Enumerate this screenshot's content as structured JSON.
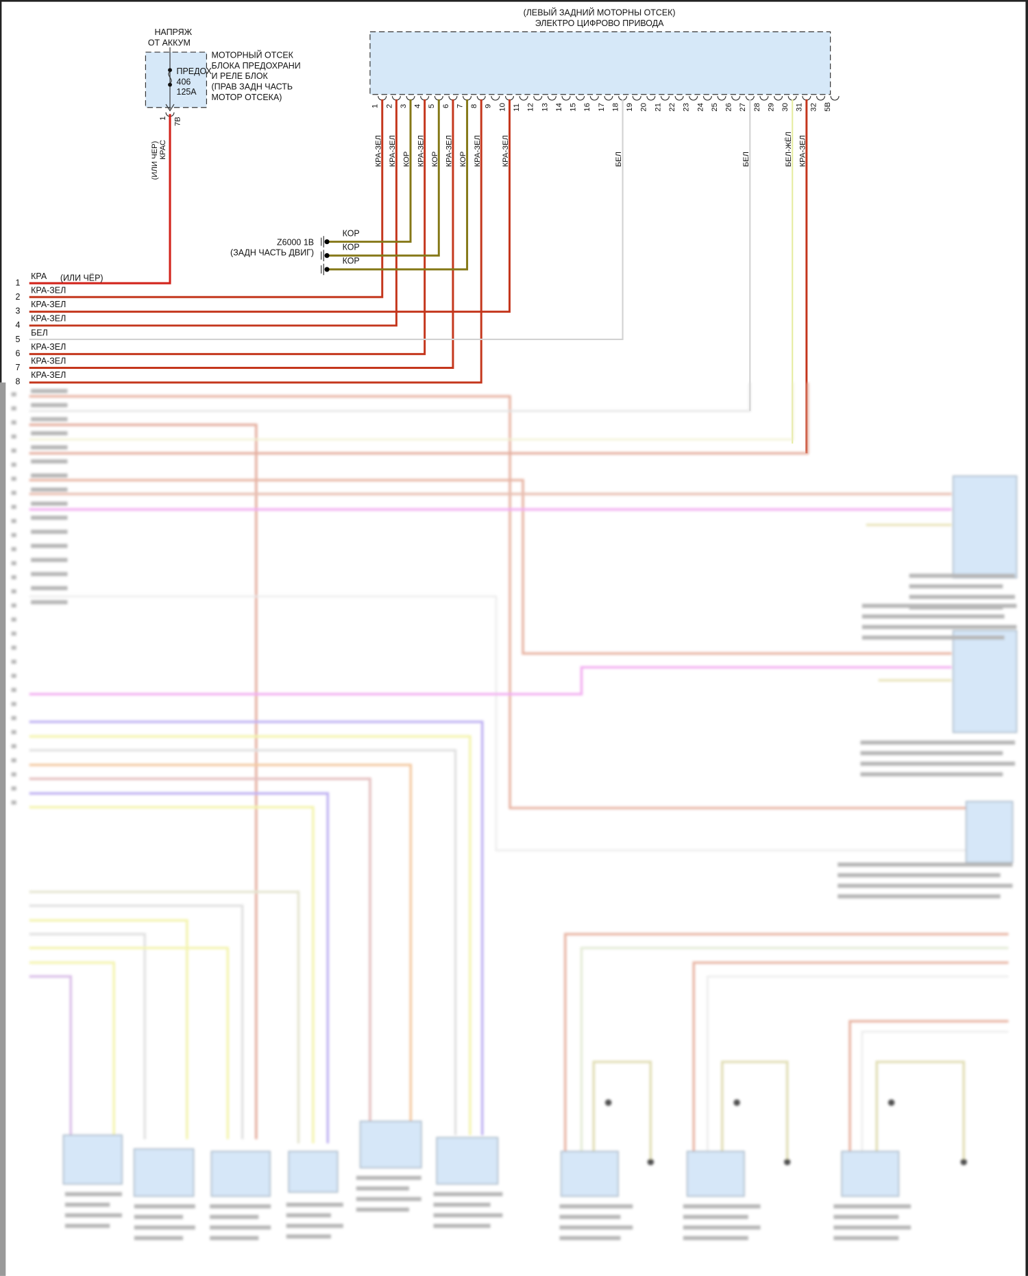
{
  "battery": {
    "title_line1": "НАПРЯЖ",
    "title_line2": "ОТ АККУМ",
    "fuse_label": "ПРЕДОХ",
    "fuse_number": "406",
    "fuse_rating": "125А",
    "box_lines": [
      "МОТОРНЫЙ ОТСЕК",
      "БЛОКА ПРЕДОХРАНИ",
      "И РЕЛЕ БЛОК",
      "(ПРАВ ЗАДН ЧАСТЬ",
      "МОТОР ОТСЕКА)"
    ],
    "pin": "1",
    "connector": "7В",
    "wire_color": "КРАС",
    "wire_alt": "(ИЛИ ЧЕР)"
  },
  "module": {
    "title_line1": "(ЛЕВЫЙ ЗАДНИЙ МОТОРНЫ ОТСЕК)",
    "title_line2": "ЭЛЕКТРО ЦИФРОВО ПРИВОДА",
    "pins": [
      "1",
      "2",
      "3",
      "4",
      "5",
      "6",
      "7",
      "8",
      "9",
      "10",
      "11",
      "12",
      "13",
      "14",
      "15",
      "16",
      "17",
      "18",
      "19",
      "20",
      "21",
      "22",
      "23",
      "24",
      "25",
      "26",
      "27",
      "28",
      "29",
      "30",
      "31",
      "32",
      "5В"
    ],
    "wires": [
      {
        "pin": "1",
        "label": "КРА-ЗЕЛ",
        "color": "#c4361c"
      },
      {
        "pin": "2",
        "label": "КРА-ЗЕЛ",
        "color": "#c4361c"
      },
      {
        "pin": "3",
        "label": "КОР",
        "color": "#857817"
      },
      {
        "pin": "4",
        "label": "КРА-ЗЕЛ",
        "color": "#c4361c"
      },
      {
        "pin": "5",
        "label": "КОР",
        "color": "#857817"
      },
      {
        "pin": "6",
        "label": "КРА-ЗЕЛ",
        "color": "#c4361c"
      },
      {
        "pin": "7",
        "label": "КОР",
        "color": "#857817"
      },
      {
        "pin": "8",
        "label": "КРА-ЗЕЛ",
        "color": "#c4361c"
      },
      {
        "pin": "10",
        "label": "КРА-ЗЕЛ",
        "color": "#c4361c"
      },
      {
        "pin": "18",
        "label": "БЕЛ",
        "color": "#d2d2d2"
      },
      {
        "pin": "27",
        "label": "БЕЛ",
        "color": "#d2d2d2"
      },
      {
        "pin": "30",
        "label": "БЕЛ-ЖЁЛ",
        "color": "#e6eca2"
      },
      {
        "pin": "31",
        "label": "КРА-ЗЕЛ",
        "color": "#c4361c"
      }
    ]
  },
  "ground": {
    "id": "Z6000 1В",
    "location": "(ЗАДН ЧАСТЬ ДВИГ)",
    "wire_labels": [
      "КОР",
      "КОР",
      "КОР"
    ]
  },
  "harness_rows": [
    {
      "num": "1",
      "label": "КРА",
      "note": "(ИЛИ ЧЁР)",
      "color": "#d2231b"
    },
    {
      "num": "2",
      "label": "КРА-ЗЕЛ",
      "color": "#c4361c"
    },
    {
      "num": "3",
      "label": "КРА-ЗЕЛ",
      "color": "#c4361c"
    },
    {
      "num": "4",
      "label": "КРА-ЗЕЛ",
      "color": "#c4361c"
    },
    {
      "num": "5",
      "label": "БЕЛ",
      "color": "#d2d2d2"
    },
    {
      "num": "6",
      "label": "КРА-ЗЕЛ",
      "color": "#c4361c"
    },
    {
      "num": "7",
      "label": "КРА-ЗЕЛ",
      "color": "#c4361c"
    },
    {
      "num": "8",
      "label": "КРА-ЗЕЛ",
      "color": "#c4361c"
    }
  ],
  "colors": {
    "component_fill": "#d6e8f8",
    "power_wire": "#d2231b"
  }
}
